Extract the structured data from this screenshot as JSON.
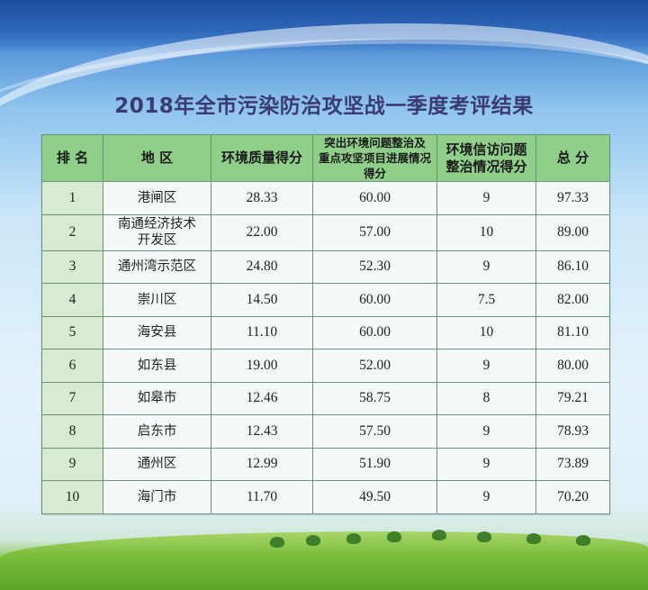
{
  "title": "2018年全市污染防治攻坚战一季度考评结果",
  "table": {
    "headers": {
      "rank": "排 名",
      "region": "地 区",
      "env_quality": "环境质量得分",
      "issues_line1": "突出环境问题整治及",
      "issues_line2": "重点攻坚项目进展情况得分",
      "petition_line1": "环境信访问题",
      "petition_line2": "整治情况得分",
      "total": "总 分"
    },
    "rows": [
      {
        "rank": "1",
        "region": "港闸区",
        "region_line2": "",
        "env_quality": "28.33",
        "issues": "60.00",
        "petition": "9",
        "total": "97.33"
      },
      {
        "rank": "2",
        "region": "南通经济技术",
        "region_line2": "开发区",
        "env_quality": "22.00",
        "issues": "57.00",
        "petition": "10",
        "total": "89.00"
      },
      {
        "rank": "3",
        "region": "通州湾示范区",
        "region_line2": "",
        "env_quality": "24.80",
        "issues": "52.30",
        "petition": "9",
        "total": "86.10"
      },
      {
        "rank": "4",
        "region": "崇川区",
        "region_line2": "",
        "env_quality": "14.50",
        "issues": "60.00",
        "petition": "7.5",
        "total": "82.00"
      },
      {
        "rank": "5",
        "region": "海安县",
        "region_line2": "",
        "env_quality": "11.10",
        "issues": "60.00",
        "petition": "10",
        "total": "81.10"
      },
      {
        "rank": "6",
        "region": "如东县",
        "region_line2": "",
        "env_quality": "19.00",
        "issues": "52.00",
        "petition": "9",
        "total": "80.00"
      },
      {
        "rank": "7",
        "region": "如皋市",
        "region_line2": "",
        "env_quality": "12.46",
        "issues": "58.75",
        "petition": "8",
        "total": "79.21"
      },
      {
        "rank": "8",
        "region": "启东市",
        "region_line2": "",
        "env_quality": "12.43",
        "issues": "57.50",
        "petition": "9",
        "total": "78.93"
      },
      {
        "rank": "9",
        "region": "通州区",
        "region_line2": "",
        "env_quality": "12.99",
        "issues": "51.90",
        "petition": "9",
        "total": "73.89"
      },
      {
        "rank": "10",
        "region": "海门市",
        "region_line2": "",
        "env_quality": "11.70",
        "issues": "49.50",
        "petition": "9",
        "total": "70.20"
      }
    ]
  },
  "colors": {
    "header_bg": "#8fcf8a",
    "rank_col_bg": "#d7ebd0",
    "cell_bg": "#f4f9f8",
    "title_color": "#3b3b73"
  }
}
